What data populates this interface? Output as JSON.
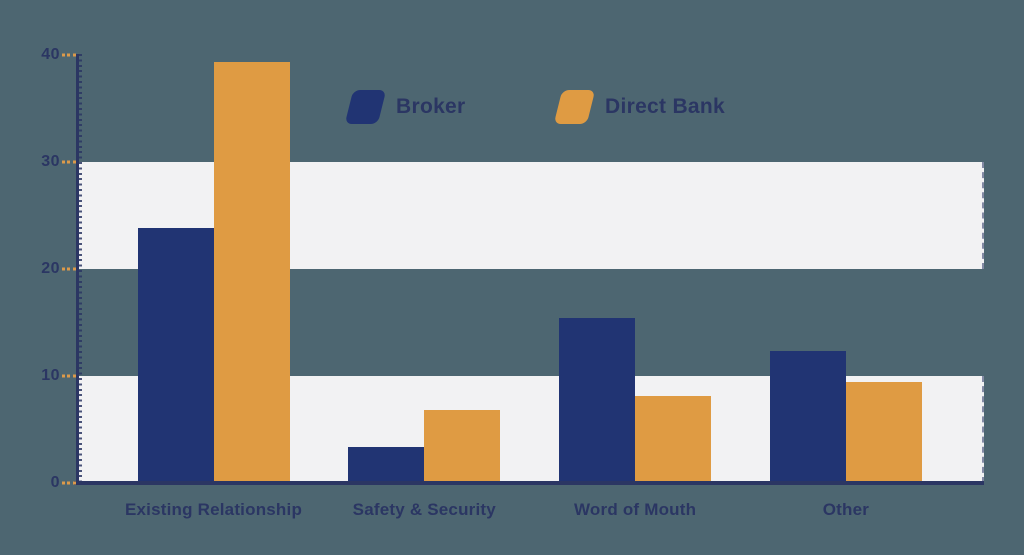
{
  "chart_data": {
    "type": "bar",
    "title": "",
    "categories": [
      "Existing Relationship",
      "Safety & Security",
      "Word of Mouth",
      "Other"
    ],
    "series": [
      {
        "name": "Broker",
        "color": "#213473",
        "values": [
          23.8,
          3.4,
          15.4,
          12.3
        ]
      },
      {
        "name": "Direct Bank",
        "color": "#df9b43",
        "values": [
          39.3,
          6.8,
          8.1,
          9.4
        ]
      }
    ],
    "xlabel": "",
    "ylabel": "",
    "ylim": [
      0,
      40
    ],
    "y_ticks": [
      "0",
      "10",
      "20",
      "30",
      "40"
    ],
    "grid": "horizontal-bands",
    "grid_bands": [
      [
        0,
        10
      ],
      [
        20,
        30
      ]
    ],
    "legend_position": "top-center",
    "legend_labels": [
      "Broker",
      "Direct Bank"
    ]
  },
  "colors": {
    "background": "#4d6671",
    "band": "#f2f2f3",
    "axis": "#2b3663",
    "tick_dash": "#dc9a4a",
    "label_text": "#2b3663"
  }
}
